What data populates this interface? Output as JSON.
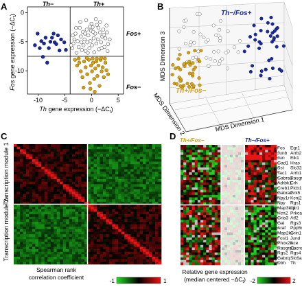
{
  "figure": {
    "panels": {
      "A": {
        "label": "A",
        "quadrant_top_left": "Th−",
        "quadrant_top_right": "Th+",
        "right_top": "Fos+",
        "right_bottom": "Fos−",
        "ylabel_gene": "Fos",
        "ylabel_rest": " gene expression (−ΔC",
        "ylabel_sub": "t",
        "ylabel_end": ")",
        "xlabel_gene": "Th",
        "xlabel_rest": " gene expression (−ΔC",
        "xlabel_sub": "t",
        "xlabel_end": ")"
      },
      "B": {
        "label": "B",
        "group_fos_pos": "Th−/Fos+",
        "group_fos_neg": "Th+/Fos−",
        "axis3": "MDS Dimension 3",
        "axis2": "MDS Dimension 2",
        "axis1": "MDS Dimension 1"
      },
      "C": {
        "label": "C",
        "module1": "Transcription module 1",
        "module2": "Transcription module 2",
        "colorbar_title_1": "Spearman rank",
        "colorbar_title_2": "correlation coefficient",
        "colorbar_min": "-1",
        "colorbar_max": "1"
      },
      "D": {
        "label": "D",
        "group_left": "Th+/Fos−",
        "group_right": "Th−/Fos+",
        "colorbar_title_1": "Relative gene expression",
        "colorbar_title_2": "(median centered −ΔC",
        "colorbar_title_sub": "t",
        "colorbar_title_end": ")",
        "colorbar_min": "-2",
        "colorbar_max": "2",
        "genes_left": [
          "Fos",
          "Junb",
          "Jun",
          "Gad1",
          "Sst",
          "Tac1",
          "Gabra1",
          "Adrbk1",
          "Creb1",
          "Gabra2",
          "Npy1r",
          "Npy",
          "Map3k11",
          "Hcn2",
          "Gria3",
          "Gal",
          "Araf",
          "Map2k1",
          "Fosl1",
          "Phox2b",
          "Rasgrp1",
          "Rgs2",
          "Gabrq",
          "Dbh"
        ],
        "genes_right": [
          "Egr1",
          "Arrb2",
          "Elk1",
          "Hras",
          "Slc32a1",
          "Arrb1",
          "Rasgrf1",
          "Crh",
          "Plcb1",
          "Grk5",
          "Kcnj2",
          "Rgs1",
          "Itpr1",
          "Prkca",
          "Atf2",
          "Rgs3",
          "Ppp5c",
          "Grin1",
          "Jund",
          "Ace",
          "Cacna1d",
          "Rgs4",
          "Slc6a2",
          "Th"
        ]
      }
    },
    "chart_data": [
      {
        "type": "scatter",
        "panel": "A",
        "xlabel": "Th gene expression (−ΔCt)",
        "ylabel": "Fos gene expression (−ΔCt)",
        "xlim": [
          -12,
          6
        ],
        "ylim": [
          -14,
          1
        ],
        "xticks": [
          -10,
          -5,
          0,
          5
        ],
        "yticks": [
          0,
          -5,
          -10
        ],
        "threshold_x": -4,
        "threshold_y": -7.5,
        "series": [
          {
            "color": "#1a2a9a",
            "points": [
              [
                -10.6,
                -5.6
              ],
              [
                -10.1,
                -3.6
              ],
              [
                -9.7,
                -6.1
              ],
              [
                -9.4,
                -4.9
              ],
              [
                -9.1,
                -7.6
              ],
              [
                -8.9,
                -5.3
              ],
              [
                -8.6,
                -4.3
              ],
              [
                -8.3,
                -8.6
              ],
              [
                -8.0,
                -6.1
              ],
              [
                -7.7,
                -5.0
              ],
              [
                -7.4,
                -4.3
              ],
              [
                -7.1,
                -3.6
              ],
              [
                -6.9,
                -5.1
              ],
              [
                -6.6,
                -5.4
              ],
              [
                -6.3,
                -3.9
              ],
              [
                -6.0,
                -6.5
              ],
              [
                -5.7,
                -4.6
              ],
              [
                -5.1,
                -5.1
              ],
              [
                -4.8,
                -6.4
              ]
            ]
          },
          {
            "color": "#ffffff",
            "points": [
              [
                -3.6,
                -6.1
              ],
              [
                -3.4,
                -5.3
              ],
              [
                -3.2,
                -4.6
              ],
              [
                -3.0,
                -3.6
              ],
              [
                -2.8,
                -6.9
              ],
              [
                -2.6,
                -4.9
              ],
              [
                -2.4,
                -5.9
              ],
              [
                -2.2,
                -2.6
              ],
              [
                -2.0,
                -4.1
              ],
              [
                -1.8,
                -6.4
              ],
              [
                -1.6,
                -3.3
              ],
              [
                -1.5,
                -5.6
              ],
              [
                -1.3,
                -4.6
              ],
              [
                -1.1,
                -6.6
              ],
              [
                -0.9,
                -2.9
              ],
              [
                -0.8,
                -5.1
              ],
              [
                -0.6,
                -3.9
              ],
              [
                -0.4,
                -6.1
              ],
              [
                -0.2,
                -4.9
              ],
              [
                -0.1,
                -3.1
              ],
              [
                0.1,
                -5.6
              ],
              [
                0.2,
                -2.5
              ],
              [
                0.4,
                -4.4
              ],
              [
                0.5,
                -6.8
              ],
              [
                0.7,
                -3.6
              ],
              [
                0.9,
                -5.3
              ],
              [
                1.0,
                -2.1
              ],
              [
                1.2,
                -4.6
              ],
              [
                1.4,
                -6.3
              ],
              [
                1.6,
                -3.4
              ],
              [
                1.8,
                -5.1
              ],
              [
                2.0,
                -4.1
              ],
              [
                2.2,
                -2.9
              ],
              [
                2.4,
                -5.9
              ],
              [
                2.6,
                -4.4
              ],
              [
                2.9,
                -3.4
              ],
              [
                3.1,
                -5.4
              ],
              [
                3.4,
                -4.6
              ],
              [
                -2.1,
                -1.6
              ],
              [
                -1.0,
                -1.3
              ],
              [
                0.0,
                -1.9
              ],
              [
                0.8,
                -1.1
              ],
              [
                1.6,
                -1.6
              ],
              [
                -2.9,
                -2.6
              ],
              [
                -0.3,
                -2.4
              ],
              [
                1.3,
                -2.6
              ],
              [
                2.8,
                -2.2
              ],
              [
                -3.5,
                -3.9
              ],
              [
                -1.9,
                -5.1
              ],
              [
                0.3,
                -3.3
              ],
              [
                1.9,
                -6.1
              ],
              [
                3.0,
                -6.6
              ],
              [
                -3.8,
                -5.6
              ],
              [
                -1.2,
                -3.6
              ],
              [
                2.3,
                -3.8
              ],
              [
                -0.7,
                -6.9
              ]
            ]
          },
          {
            "color": "#d4a017",
            "points": [
              [
                -3.1,
                -8.1
              ],
              [
                -2.7,
                -9.1
              ],
              [
                -2.3,
                -8.6
              ],
              [
                -2.0,
                -10.1
              ],
              [
                -1.7,
                -11.1
              ],
              [
                -1.4,
                -8.4
              ],
              [
                -1.1,
                -9.4
              ],
              [
                -0.8,
                -10.6
              ],
              [
                -0.5,
                -8.1
              ],
              [
                -0.3,
                -12.1
              ],
              [
                -0.1,
                -9.1
              ],
              [
                0.1,
                -10.1
              ],
              [
                0.3,
                -8.6
              ],
              [
                0.5,
                -11.4
              ],
              [
                0.7,
                -9.6
              ],
              [
                0.9,
                -8.4
              ],
              [
                1.1,
                -10.9
              ],
              [
                1.3,
                -9.1
              ],
              [
                1.5,
                -12.6
              ],
              [
                1.7,
                -8.1
              ],
              [
                1.9,
                -10.1
              ],
              [
                2.1,
                -9.4
              ],
              [
                2.3,
                -11.1
              ],
              [
                2.6,
                -8.6
              ],
              [
                2.8,
                -9.9
              ],
              [
                3.1,
                -10.6
              ],
              [
                -0.2,
                -13.1
              ],
              [
                0.6,
                -13.6
              ],
              [
                -1.5,
                -12.9
              ],
              [
                1.0,
                -7.9
              ],
              [
                -2.4,
                -7.9
              ],
              [
                -0.9,
                -7.8
              ],
              [
                0.2,
                -7.9
              ],
              [
                1.8,
                -7.8
              ],
              [
                2.5,
                -7.9
              ]
            ]
          }
        ]
      },
      {
        "type": "scatter",
        "panel": "B",
        "xlabel": "MDS Dimension 1",
        "ylabel": "MDS Dimension 3",
        "zlabel": "MDS Dimension 2"
      },
      {
        "type": "heatmap",
        "panel": "C",
        "value_range": [
          -1,
          1
        ],
        "modules": [
          "Transcription module 1",
          "Transcription module 2"
        ]
      },
      {
        "type": "heatmap",
        "panel": "D",
        "value_range": [
          -2,
          2
        ],
        "groups": [
          "Th+/Fos−",
          "Th−/Fos+"
        ]
      }
    ]
  }
}
